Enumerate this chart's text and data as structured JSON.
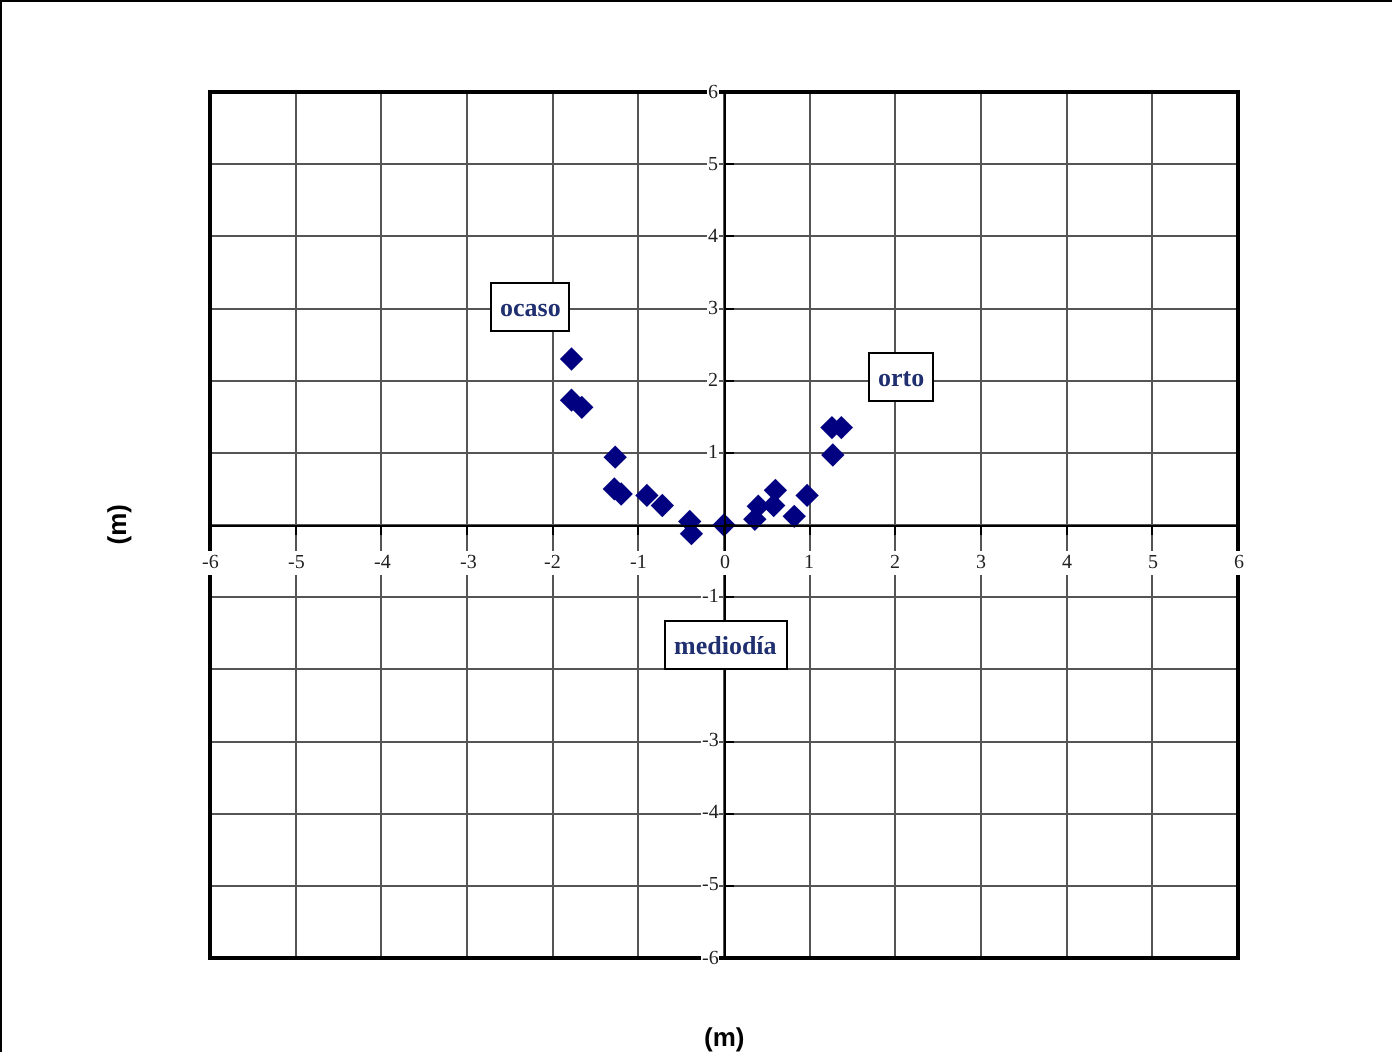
{
  "chart_data": {
    "type": "scatter",
    "xlabel": "(m)",
    "ylabel": "(m)",
    "x": [
      -1.78,
      -1.78,
      -1.66,
      -1.27,
      -1.28,
      -1.2,
      -0.9,
      -0.72,
      -0.4,
      -0.38,
      0.0,
      0.36,
      0.4,
      0.6,
      0.58,
      0.82,
      0.97,
      1.27,
      1.26,
      1.37
    ],
    "values": [
      2.3,
      1.73,
      1.63,
      0.94,
      0.5,
      0.43,
      0.41,
      0.27,
      0.05,
      -0.12,
      0.0,
      0.08,
      0.26,
      0.48,
      0.27,
      0.12,
      0.41,
      0.97,
      1.35,
      1.35
    ],
    "color": "#000080",
    "marker": "diamond",
    "xlim": [
      -6,
      6
    ],
    "ylim": [
      -6,
      6
    ],
    "xticks": [
      -6,
      -5,
      -4,
      -3,
      -2,
      -1,
      0,
      1,
      2,
      3,
      4,
      5,
      6
    ],
    "yticks": [
      -6,
      -5,
      -4,
      -3,
      {
        "value": -2,
        "label": null
      },
      -1,
      {
        "value": 0,
        "label": null
      },
      1,
      2,
      3,
      4,
      5,
      6
    ],
    "grid": true,
    "annotations": [
      {
        "text": "ocaso",
        "x": -2.26,
        "y": 3.02
      },
      {
        "text": "orto",
        "x": 2.07,
        "y": 2.05
      },
      "mediodía"
    ]
  }
}
